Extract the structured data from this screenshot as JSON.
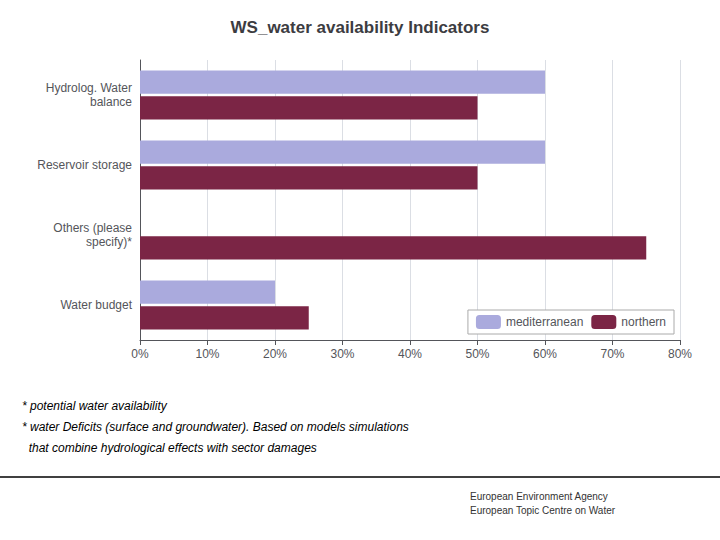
{
  "chart_data": {
    "type": "bar",
    "orientation": "horizontal",
    "title": "WS_water availability Indicators",
    "categories": [
      "Hydrolog. Water\nbalance",
      "Reservoir storage",
      "Others (please\nspecify)*",
      "Water budget"
    ],
    "series": [
      {
        "name": "mediterranean",
        "color": "#aaaadd",
        "values": [
          60,
          60,
          0,
          20
        ]
      },
      {
        "name": "northern",
        "color": "#7b2545",
        "values": [
          50,
          50,
          75,
          25
        ]
      }
    ],
    "xlim": [
      0,
      80
    ],
    "xticks": [
      {
        "value": 0,
        "label": "0%"
      },
      {
        "value": 10,
        "label": "10%"
      },
      {
        "value": 20,
        "label": "20%"
      },
      {
        "value": 30,
        "label": "30%"
      },
      {
        "value": 40,
        "label": "40%"
      },
      {
        "value": 50,
        "label": "50%"
      },
      {
        "value": 60,
        "label": "60%"
      },
      {
        "value": 70,
        "label": "70%"
      },
      {
        "value": 80,
        "label": "80%"
      }
    ],
    "grid": true,
    "legend": "lower right",
    "annotations": [
      "* potential water availability",
      "* water Deficits (surface and groundwater). Based on models simulations",
      "  that combine hydrological effects with sector damages",
      "European Environment Agency\nEuropean Topic Centre on Water"
    ]
  }
}
